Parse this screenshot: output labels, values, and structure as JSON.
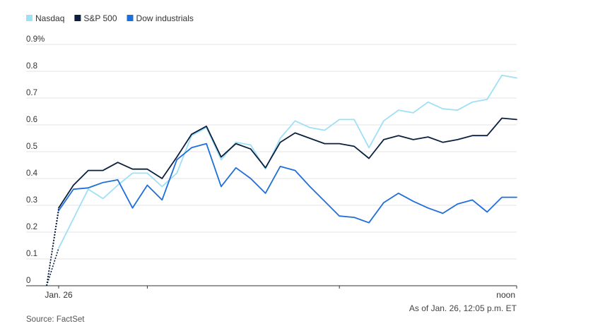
{
  "chart_data": {
    "type": "line",
    "title": "",
    "xlabel": "",
    "ylabel": "",
    "y_unit_suffix": "%",
    "ylim": [
      0,
      0.9
    ],
    "yticks": [
      0,
      0.1,
      0.2,
      0.3,
      0.4,
      0.5,
      0.6,
      0.7,
      0.8,
      0.9
    ],
    "ytick_labels": [
      "0",
      "0.1",
      "0.2",
      "0.3",
      "0.4",
      "0.5",
      "0.6",
      "0.7",
      "0.8",
      "0.9%"
    ],
    "grid": true,
    "legend_placement": "top-left",
    "x_tick_labels": [
      {
        "label": "Jan. 26",
        "index": 0
      },
      {
        "label": "noon",
        "index": 31
      }
    ],
    "x_minor_ticks": [
      6,
      19
    ],
    "x_count": 32,
    "note": "As of Jan. 26, 12:05 p.m. ET",
    "source": "Source: FactSet",
    "series": [
      {
        "name": "Nasdaq",
        "color": "#9ee0f5",
        "start_value": 0,
        "values": [
          0.14,
          0.25,
          0.36,
          0.325,
          0.375,
          0.42,
          0.42,
          0.37,
          0.42,
          0.56,
          0.59,
          0.47,
          0.535,
          0.525,
          0.435,
          0.55,
          0.615,
          0.59,
          0.58,
          0.62,
          0.62,
          0.515,
          0.615,
          0.655,
          0.645,
          0.685,
          0.66,
          0.655,
          0.685,
          0.695,
          0.785,
          0.775
        ]
      },
      {
        "name": "S&P 500",
        "color": "#0b1f3f",
        "start_value": 0,
        "values": [
          0.29,
          0.375,
          0.43,
          0.43,
          0.46,
          0.435,
          0.435,
          0.4,
          0.48,
          0.565,
          0.595,
          0.48,
          0.53,
          0.51,
          0.44,
          0.535,
          0.57,
          0.55,
          0.53,
          0.53,
          0.52,
          0.475,
          0.545,
          0.56,
          0.545,
          0.555,
          0.535,
          0.545,
          0.56,
          0.56,
          0.625,
          0.62
        ]
      },
      {
        "name": "Dow industrials",
        "color": "#1f6fdb",
        "start_value": 0,
        "values": [
          0.28,
          0.36,
          0.365,
          0.385,
          0.395,
          0.29,
          0.375,
          0.32,
          0.47,
          0.515,
          0.53,
          0.37,
          0.44,
          0.4,
          0.345,
          0.445,
          0.43,
          0.37,
          0.315,
          0.26,
          0.255,
          0.235,
          0.31,
          0.345,
          0.315,
          0.29,
          0.27,
          0.305,
          0.32,
          0.275,
          0.33,
          0.33
        ]
      }
    ]
  }
}
